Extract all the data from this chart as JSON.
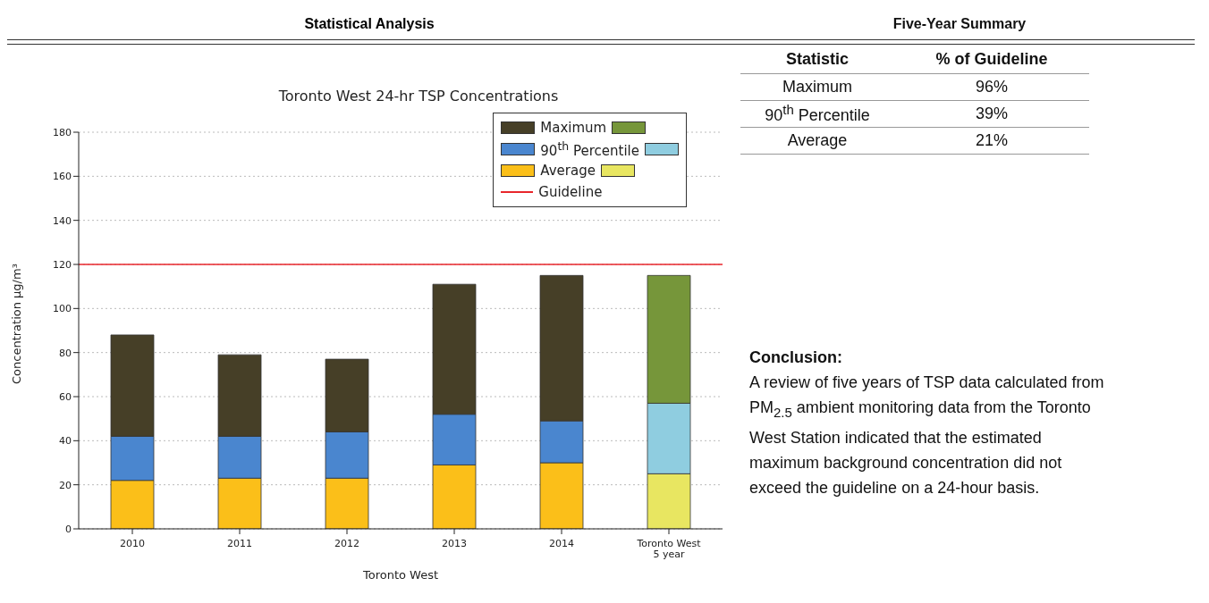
{
  "chart_data": [
    {
      "type": "bar",
      "title": "Toronto West 24-hr TSP Concentrations",
      "xlabel": "Toronto West",
      "ylabel": "Concentration µg/m³",
      "annotations": [
        "Statistical Analysis"
      ],
      "categories": [
        "2010",
        "2011",
        "2012",
        "2013",
        "2014",
        "Toronto West\n5 year"
      ],
      "stacked": true,
      "series": [
        {
          "name": "Average",
          "color": "#fbbf19",
          "colors": [
            "#fbbf19",
            "#fbbf19",
            "#fbbf19",
            "#fbbf19",
            "#fbbf19",
            "#e8e661"
          ],
          "values": [
            22,
            23,
            23,
            29,
            30,
            25
          ]
        },
        {
          "name": "90$^{th}$ Percentile",
          "color": "#4a86cf",
          "colors": [
            "#4a86cf",
            "#4a86cf",
            "#4a86cf",
            "#4a86cf",
            "#4a86cf",
            "#8fcde0"
          ],
          "values": [
            20,
            19,
            21,
            23,
            19,
            32
          ]
        },
        {
          "name": "Maximum",
          "color": "#463f27",
          "colors": [
            "#463f27",
            "#463f27",
            "#463f27",
            "#463f27",
            "#463f27",
            "#76963a"
          ],
          "values": [
            46,
            37,
            33,
            59,
            66,
            58
          ]
        }
      ],
      "ylim": [
        0,
        180
      ],
      "yticks": [
        0,
        20,
        40,
        60,
        80,
        100,
        120,
        140,
        160,
        180
      ],
      "grid": "y",
      "legend": "top right",
      "ref_lines": [
        {
          "axis": "y",
          "value": 120,
          "label": "Guideline",
          "color": "#e8262b"
        }
      ]
    },
    {
      "type": "other",
      "title": "Five-Year Summary",
      "annotations": [
        "Statistic",
        "% of Guideline",
        "Maximum",
        "96%",
        "90$^{th}$ Percentile",
        "39%",
        "Average",
        "21%",
        "Conclusion:",
        "A review of five years of TSP data calculated from PM$_{2.5}$ ambient monitoring data from the Toronto West Station indicated that the estimated maximum background concentration did not exceed the guideline on a 24-hour basis."
      ]
    }
  ]
}
